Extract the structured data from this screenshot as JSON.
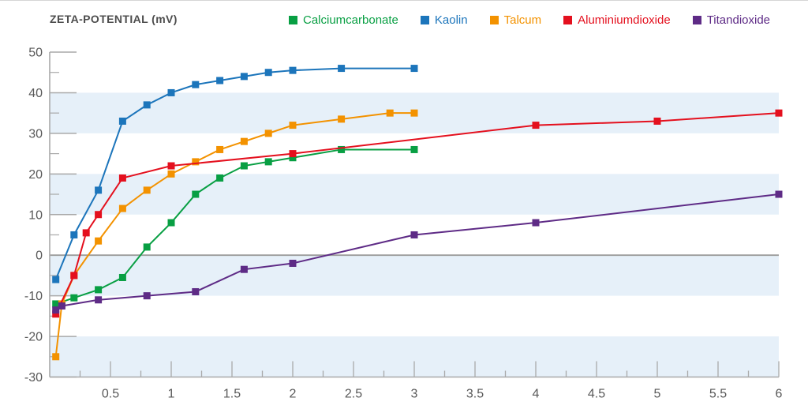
{
  "chart_data": {
    "type": "line",
    "title": "ZETA-POTENTIAL (mV)",
    "xlabel": "",
    "ylabel": "ZETA-POTENTIAL (mV)",
    "xlim": [
      0,
      6
    ],
    "ylim": [
      -30,
      50
    ],
    "x_major_ticks": [
      0.5,
      1,
      1.5,
      2,
      2.5,
      3,
      3.5,
      4,
      4.5,
      5,
      5.5,
      6
    ],
    "x_minor_step": 0.25,
    "y_tick_labels": [
      50,
      40,
      30,
      20,
      10,
      0,
      -10,
      -20,
      -30
    ],
    "y_minor_step": 5,
    "grid": "zero-line and alternating horizontal bands",
    "legend_position": "top",
    "bands": [
      [
        30,
        40
      ],
      [
        10,
        20
      ],
      [
        -10,
        0
      ],
      [
        -30,
        -20
      ]
    ],
    "series": [
      {
        "name": "Calciumcarbonate",
        "color": "#089f43",
        "points": [
          [
            0.05,
            -12
          ],
          [
            0.2,
            -10.5
          ],
          [
            0.4,
            -8.5
          ],
          [
            0.6,
            -5.5
          ],
          [
            0.8,
            2
          ],
          [
            1,
            8
          ],
          [
            1.2,
            15
          ],
          [
            1.4,
            19
          ],
          [
            1.6,
            22
          ],
          [
            1.8,
            23
          ],
          [
            2,
            24
          ],
          [
            2.4,
            26
          ],
          [
            3,
            26
          ]
        ]
      },
      {
        "name": "Kaolin",
        "color": "#1c75bb",
        "points": [
          [
            0.05,
            -6
          ],
          [
            0.2,
            5
          ],
          [
            0.4,
            16
          ],
          [
            0.6,
            33
          ],
          [
            0.8,
            37
          ],
          [
            1,
            40
          ],
          [
            1.2,
            42
          ],
          [
            1.4,
            43
          ],
          [
            1.6,
            44
          ],
          [
            1.8,
            45
          ],
          [
            2,
            45.5
          ],
          [
            2.4,
            46
          ],
          [
            3,
            46
          ]
        ]
      },
      {
        "name": "Talcum",
        "color": "#f39200",
        "points": [
          [
            0.05,
            -25
          ],
          [
            0.1,
            -12
          ],
          [
            0.2,
            -5
          ],
          [
            0.4,
            3.5
          ],
          [
            0.6,
            11.5
          ],
          [
            0.8,
            16
          ],
          [
            1,
            20
          ],
          [
            1.2,
            23
          ],
          [
            1.4,
            26
          ],
          [
            1.6,
            28
          ],
          [
            1.8,
            30
          ],
          [
            2,
            32
          ],
          [
            2.4,
            33.5
          ],
          [
            2.8,
            35
          ],
          [
            3,
            35
          ]
        ]
      },
      {
        "name": "Aluminiumdioxide",
        "color": "#e4101e",
        "points": [
          [
            0.05,
            -14.5
          ],
          [
            0.2,
            -5
          ],
          [
            0.3,
            5.5
          ],
          [
            0.4,
            10
          ],
          [
            0.6,
            19
          ],
          [
            1,
            22
          ],
          [
            2,
            25
          ],
          [
            4,
            32
          ],
          [
            5,
            33
          ],
          [
            6,
            35
          ]
        ]
      },
      {
        "name": "Titandioxide",
        "color": "#5e2b86",
        "points": [
          [
            0.05,
            -13.5
          ],
          [
            0.1,
            -12.5
          ],
          [
            0.4,
            -11
          ],
          [
            0.8,
            -10
          ],
          [
            1.2,
            -9
          ],
          [
            1.6,
            -3.5
          ],
          [
            2,
            -2
          ],
          [
            3,
            5
          ],
          [
            4,
            8
          ],
          [
            6,
            15
          ]
        ]
      }
    ],
    "style": {
      "band_fill": "#e6f0f9",
      "axis_color": "#a9a9a9",
      "zero_line_color": "#9c9c9c",
      "tick_label_color": "#595959",
      "title_color": "#4d4d4d",
      "background": "#ffffff"
    }
  }
}
